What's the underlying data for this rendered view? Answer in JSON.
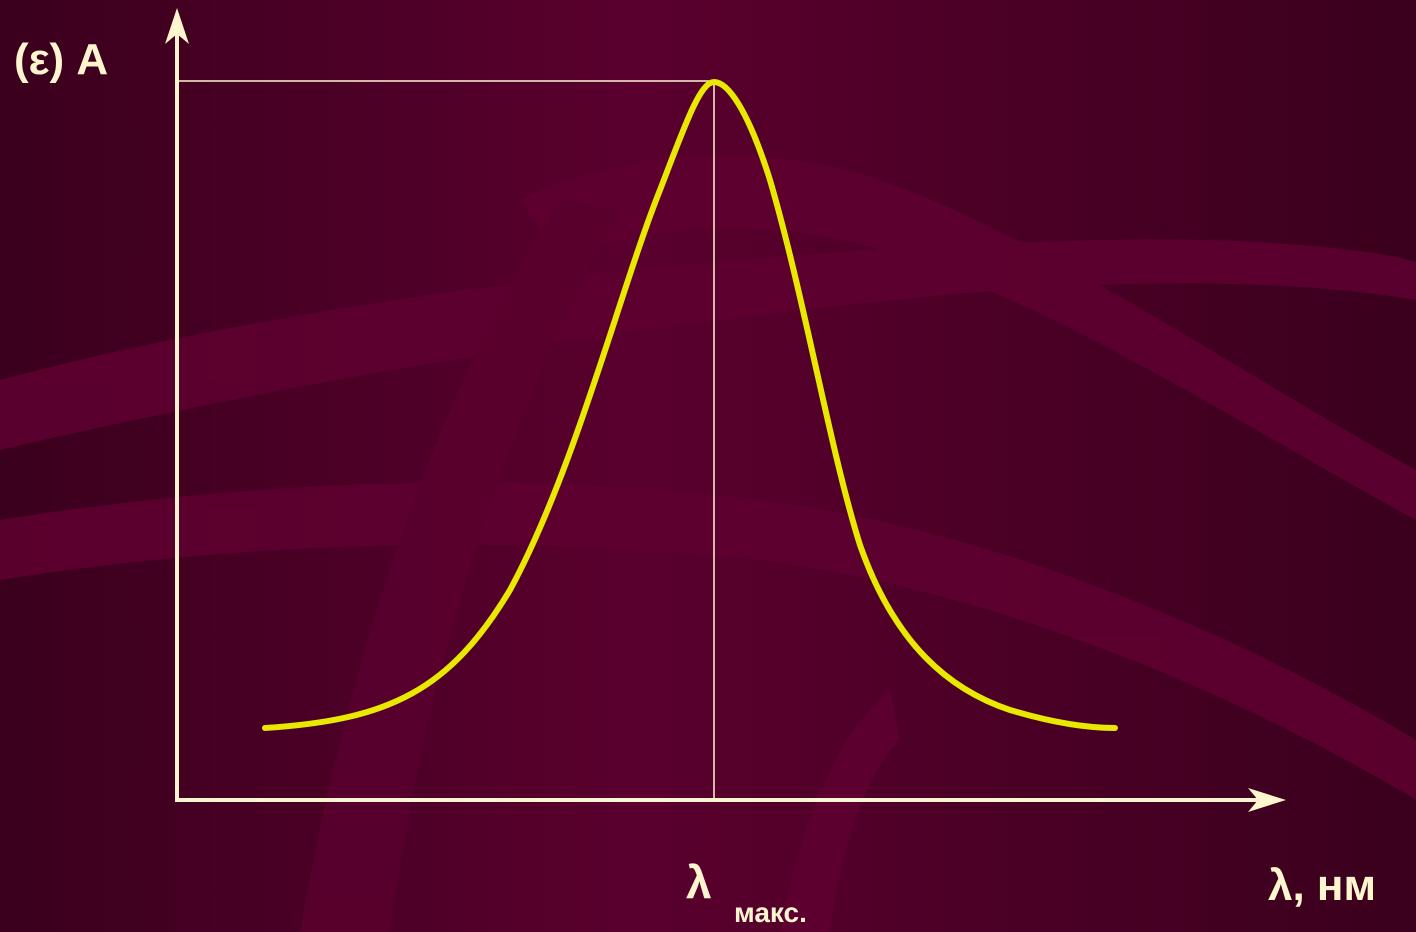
{
  "colors": {
    "background": "#4a0024",
    "background_band": "#5e0030",
    "background_dark": "#330018",
    "axis": "#fff6d0",
    "curve": "#e8e800",
    "guide": "#fff6d0"
  },
  "labels": {
    "y_axis": "(ε) A",
    "x_axis": "λ, нм",
    "peak_symbol": "λ",
    "peak_subscript": "макс."
  },
  "curve": {
    "shape": "bell-shaped absorption band",
    "peak_marked": true
  }
}
